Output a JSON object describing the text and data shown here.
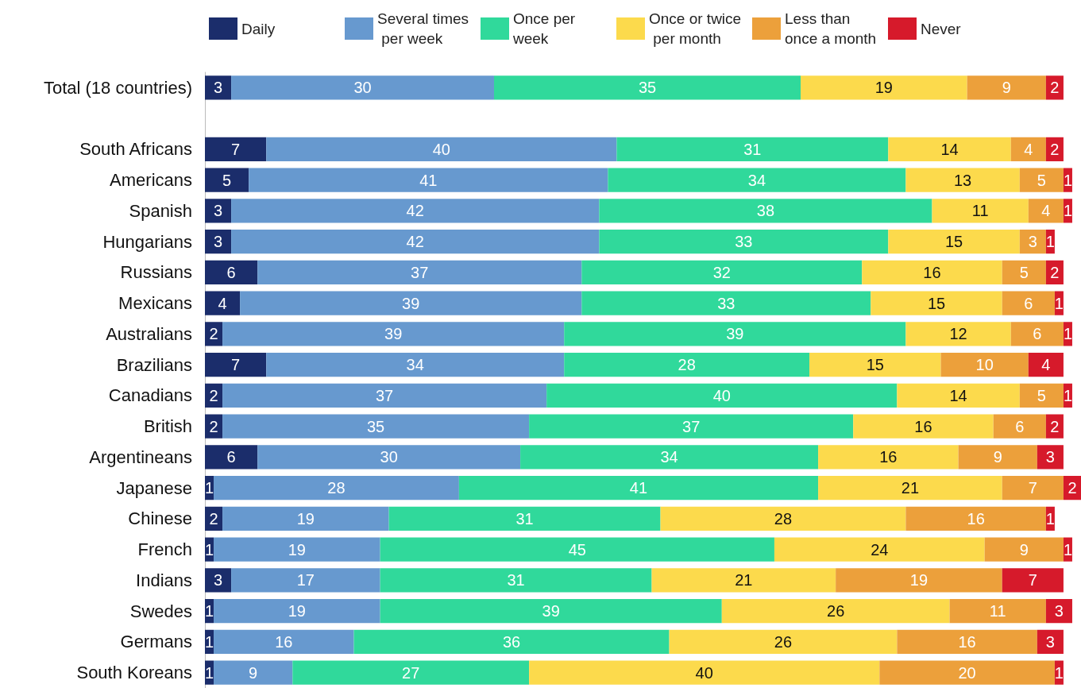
{
  "chart_data": {
    "type": "bar",
    "orientation": "horizontal",
    "stacked": true,
    "data_labels": true,
    "legend": "top",
    "tick_labels": "y",
    "xlim": [
      0,
      100
    ],
    "categories": [
      "Total (18 countries)",
      null,
      "South Africans",
      "Americans",
      "Spanish",
      "Hungarians",
      "Russians",
      "Mexicans",
      "Australians",
      "Brazilians",
      "Canadians",
      "British",
      "Argentineans",
      "Japanese",
      "Chinese",
      "French",
      "Indians",
      "Swedes",
      "Germans",
      "South Koreans"
    ],
    "series": [
      {
        "name": "Daily",
        "color": "#1b2d6b",
        "values": [
          3,
          null,
          7,
          5,
          3,
          3,
          6,
          4,
          2,
          7,
          2,
          2,
          6,
          1,
          2,
          1,
          3,
          1,
          1,
          1
        ]
      },
      {
        "name": "Several times per week",
        "color": "#6799cf",
        "values": [
          30,
          null,
          40,
          41,
          42,
          42,
          37,
          39,
          39,
          34,
          37,
          35,
          30,
          28,
          19,
          19,
          17,
          19,
          16,
          9
        ]
      },
      {
        "name": "Once per week",
        "color": "#30d99b",
        "values": [
          35,
          null,
          31,
          34,
          38,
          33,
          32,
          33,
          39,
          28,
          40,
          37,
          34,
          41,
          31,
          45,
          31,
          39,
          36,
          27
        ]
      },
      {
        "name": "Once or twice per month",
        "color": "#fcda4c",
        "values": [
          19,
          null,
          14,
          13,
          11,
          15,
          16,
          15,
          12,
          15,
          14,
          16,
          16,
          21,
          28,
          24,
          21,
          26,
          26,
          40
        ]
      },
      {
        "name": "Less than once a month",
        "color": "#eca03b",
        "values": [
          9,
          null,
          4,
          5,
          4,
          3,
          5,
          6,
          6,
          10,
          5,
          6,
          9,
          7,
          16,
          9,
          19,
          11,
          16,
          20
        ]
      },
      {
        "name": "Never",
        "color": "#d61a2b",
        "values": [
          2,
          null,
          2,
          1,
          1,
          1,
          2,
          1,
          1,
          4,
          1,
          2,
          3,
          2,
          1,
          1,
          7,
          3,
          3,
          1
        ]
      }
    ]
  }
}
